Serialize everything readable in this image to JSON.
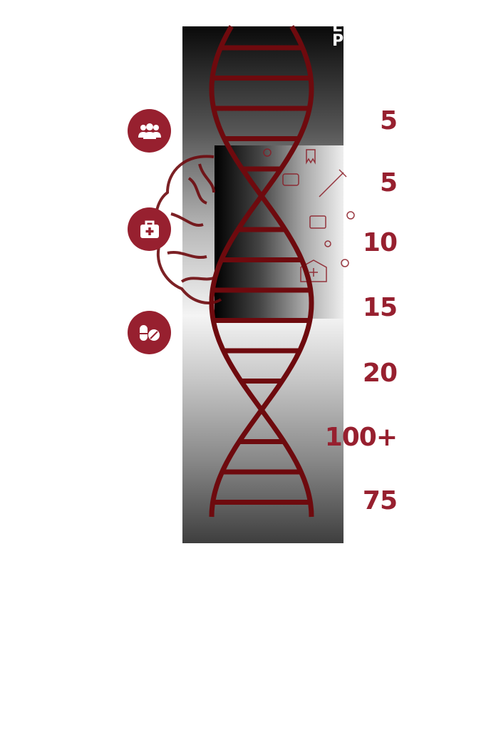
{
  "header": {
    "title_fragment": "E\nP"
  },
  "icons": [
    {
      "name": "people-icon"
    },
    {
      "name": "medical-kit-icon"
    },
    {
      "name": "pills-icon"
    }
  ],
  "stats": [
    "5",
    "5",
    "10",
    "15",
    "20",
    "100+",
    "75"
  ],
  "colors": {
    "accent": "#97202f",
    "dna": "#6e0a0e"
  }
}
